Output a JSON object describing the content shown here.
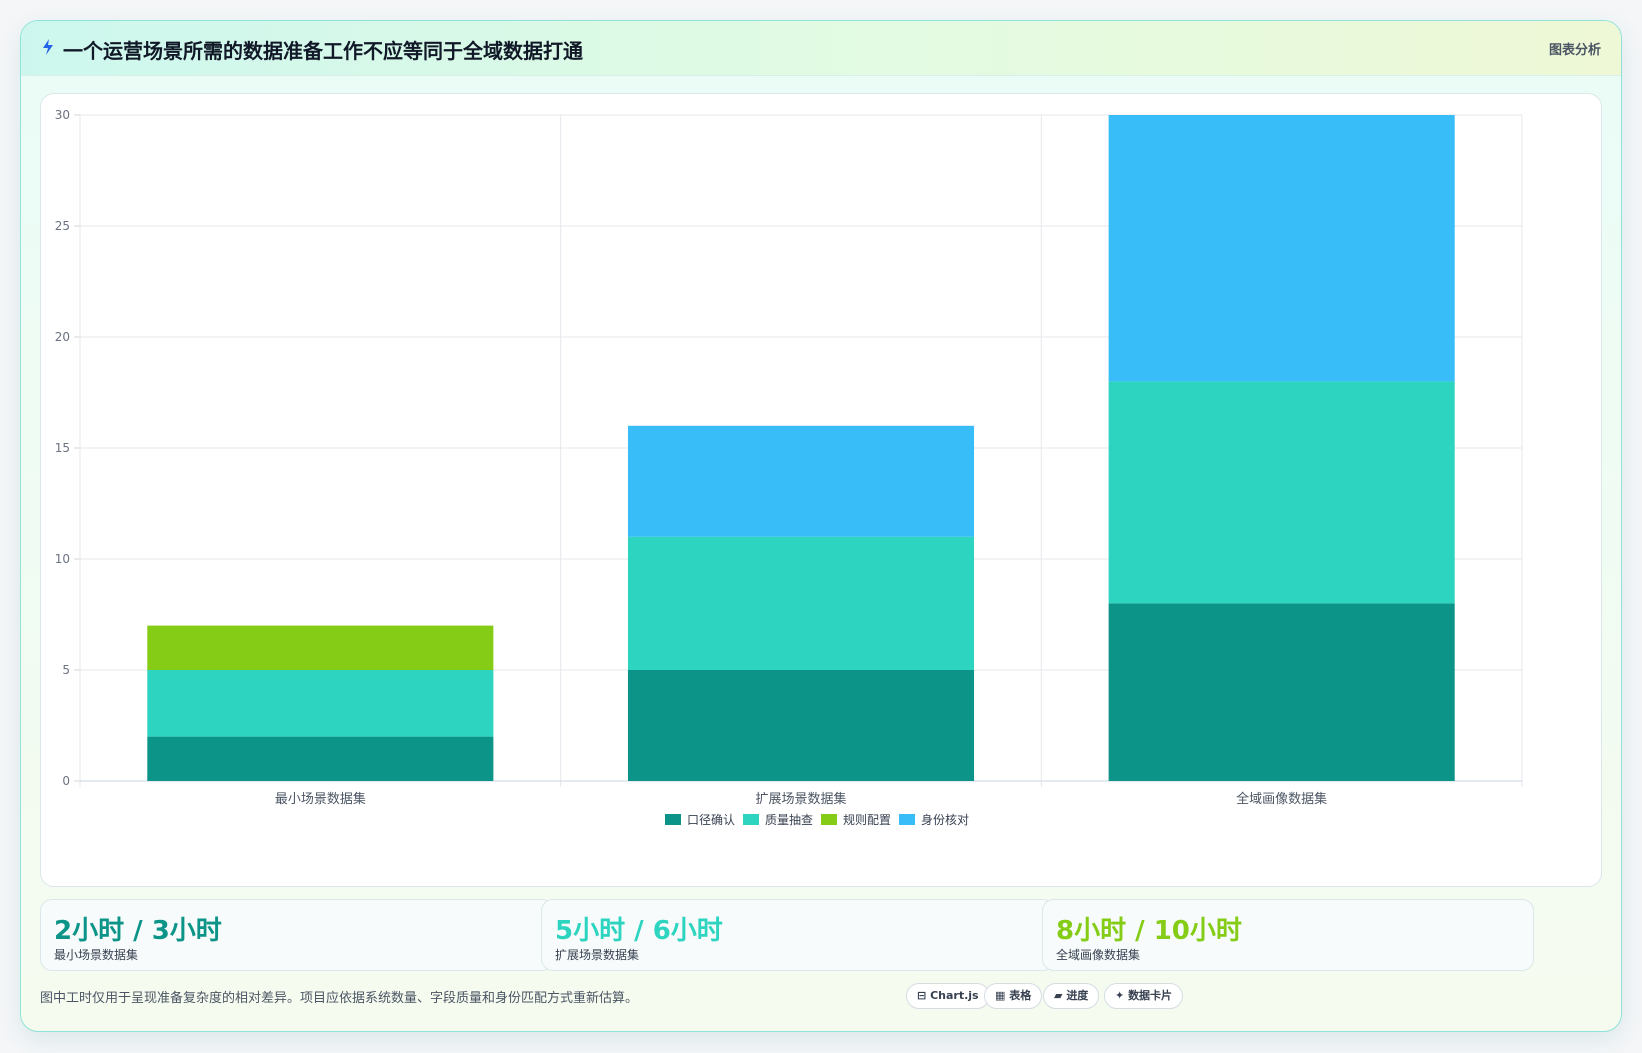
{
  "header": {
    "icon": "bolt-icon",
    "title": "一个运营场景所需的数据准备工作不应等同于全域数据打通",
    "tag": "图表分析"
  },
  "chart_data": {
    "type": "bar",
    "stacked": true,
    "categories": [
      "最小场景数据集",
      "扩展场景数据集",
      "全域画像数据集"
    ],
    "series": [
      {
        "name": "口径确认",
        "color": "#0d9488",
        "values": [
          2,
          5,
          8
        ]
      },
      {
        "name": "质量抽查",
        "color": "#2dd4bf",
        "values": [
          3,
          6,
          10
        ]
      },
      {
        "name": "规则配置",
        "color": "#84cc16",
        "values": [
          2,
          0,
          0
        ]
      },
      {
        "name": "身份核对",
        "color": "#38bdf8",
        "values": [
          0,
          5,
          12
        ]
      }
    ],
    "ylim": [
      0,
      30
    ],
    "yticks": [
      0,
      5,
      10,
      15,
      20,
      25,
      30
    ],
    "grid": true,
    "legend_position": "bottom"
  },
  "stats": [
    {
      "value": "2小时 / 3小时",
      "label": "最小场景数据集",
      "color": "#0d9488"
    },
    {
      "value": "5小时 / 6小时",
      "label": "扩展场景数据集",
      "color": "#2dd4bf"
    },
    {
      "value": "8小时 / 10小时",
      "label": "全域画像数据集",
      "color": "#84cc16"
    }
  ],
  "footer": {
    "note": "图中工时仅用于呈现准备复杂度的相对差异。项目应依据系统数量、字段质量和身份匹配方式重新估算。",
    "chips": [
      {
        "icon": "chart-icon",
        "glyph": "⊟",
        "label": "Chart.js"
      },
      {
        "icon": "table-icon",
        "glyph": "▦",
        "label": "表格"
      },
      {
        "icon": "progress-icon",
        "glyph": "▰",
        "label": "进度"
      },
      {
        "icon": "sparkle-icon",
        "glyph": "✦",
        "label": "数据卡片"
      }
    ]
  }
}
